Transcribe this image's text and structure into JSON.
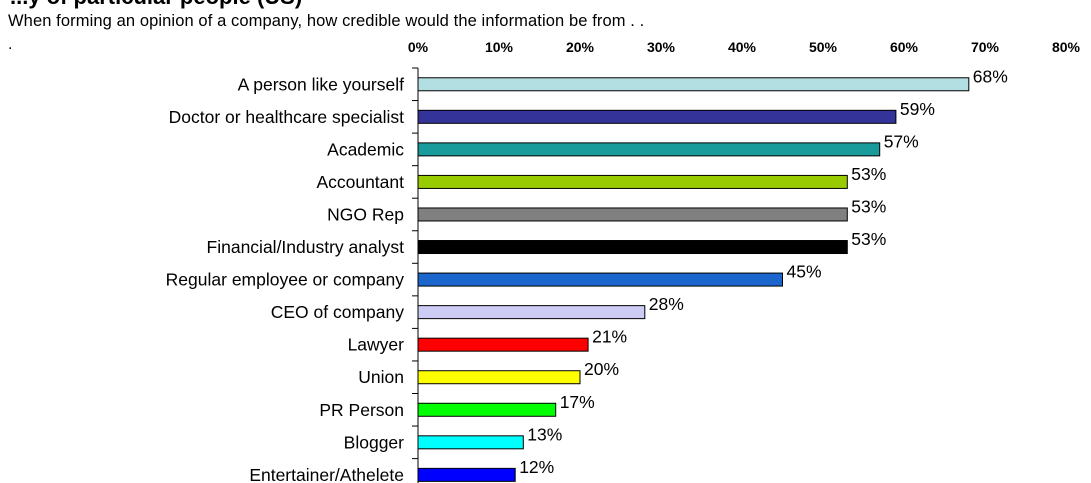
{
  "header": {
    "title": "...y of particular people (US)",
    "subtitle": "When forming an opinion of a company, how credible would the information be from  . .",
    "stray_mark": "."
  },
  "chart_data": {
    "type": "bar",
    "orientation": "horizontal",
    "title": "",
    "xlabel": "",
    "ylabel": "",
    "xlim": [
      0,
      80
    ],
    "x_ticks": [
      "0%",
      "10%",
      "20%",
      "30%",
      "40%",
      "50%",
      "60%",
      "70%",
      "80%"
    ],
    "x_axis_position": "top",
    "grid": false,
    "legend": "none",
    "categories": [
      "A person like yourself",
      "Doctor or healthcare specialist",
      "Academic",
      "Accountant",
      "NGO Rep",
      "Financial/Industry analyst",
      "Regular employee or company",
      "CEO of company",
      "Lawyer",
      "Union",
      "PR Person",
      "Blogger",
      "Entertainer/Athelete"
    ],
    "values": [
      68,
      59,
      57,
      53,
      53,
      53,
      45,
      28,
      21,
      20,
      17,
      13,
      12
    ],
    "value_labels": [
      "68%",
      "59%",
      "57%",
      "53%",
      "53%",
      "53%",
      "45%",
      "28%",
      "21%",
      "20%",
      "17%",
      "13%",
      "12%"
    ],
    "colors": [
      "#b4dfe2",
      "#333399",
      "#1a9b9b",
      "#99cc00",
      "#808080",
      "#000000",
      "#1a66cc",
      "#ccccf5",
      "#ff0000",
      "#ffff00",
      "#00ff00",
      "#00ffff",
      "#0000ff"
    ]
  }
}
